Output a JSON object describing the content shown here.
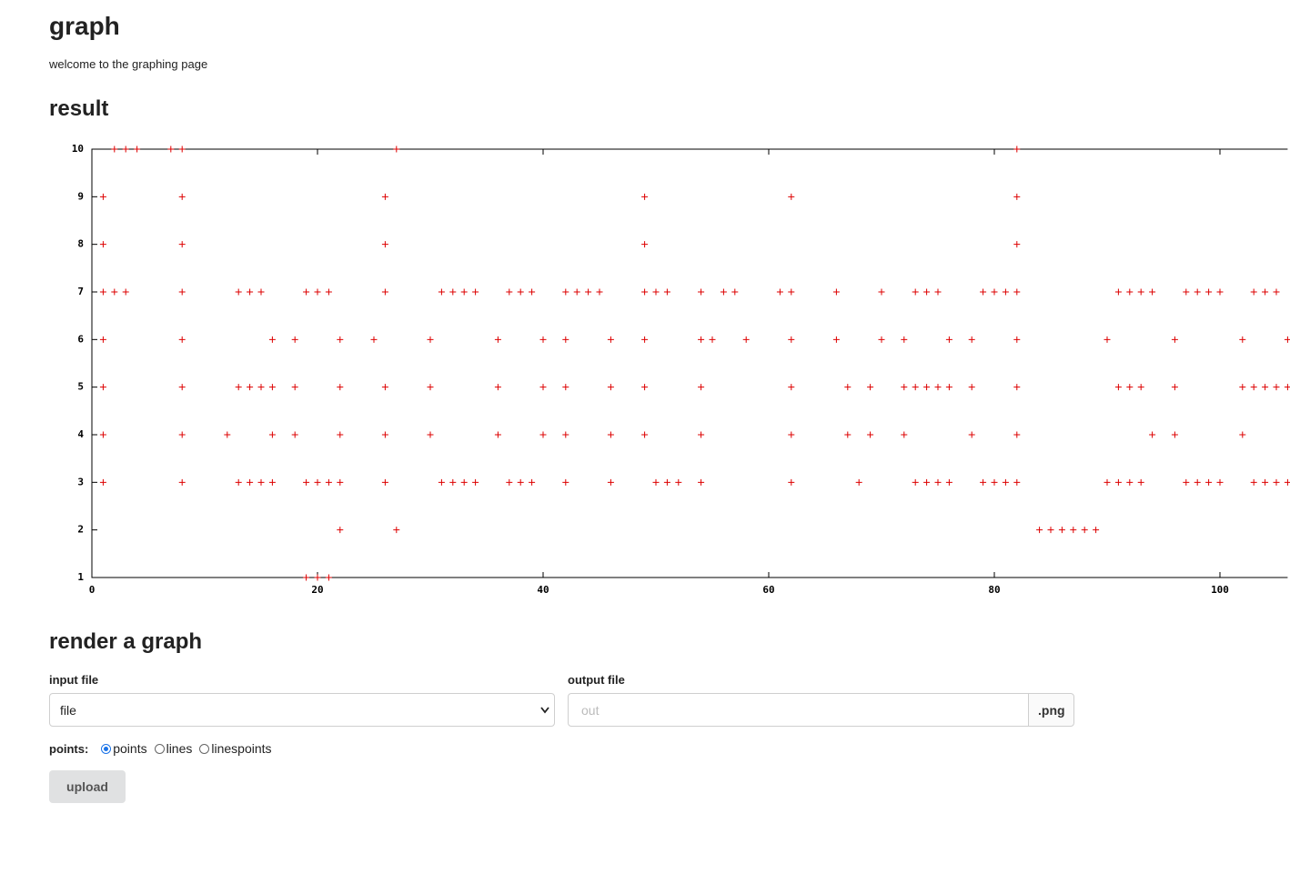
{
  "header": {
    "title": "graph",
    "subtitle": "welcome to the graphing page"
  },
  "result_heading": "result",
  "chart_data": {
    "type": "scatter",
    "color": "#dd0000",
    "marker": "plus",
    "xlim": [
      0,
      106
    ],
    "ylim": [
      1,
      10
    ],
    "xticks": [
      0,
      20,
      40,
      60,
      80,
      100
    ],
    "yticks": [
      1,
      2,
      3,
      4,
      5,
      6,
      7,
      8,
      9,
      10
    ],
    "x": [
      2,
      3,
      4,
      7,
      8,
      27,
      82,
      1,
      8,
      26,
      49,
      62,
      82,
      1,
      8,
      26,
      49,
      82,
      1,
      2,
      3,
      8,
      13,
      14,
      15,
      19,
      20,
      21,
      26,
      31,
      32,
      33,
      34,
      37,
      38,
      39,
      42,
      43,
      44,
      45,
      49,
      50,
      51,
      54,
      56,
      57,
      61,
      62,
      66,
      70,
      73,
      74,
      75,
      79,
      80,
      81,
      82,
      91,
      92,
      93,
      94,
      97,
      98,
      99,
      100,
      103,
      104,
      105,
      1,
      8,
      16,
      18,
      22,
      25,
      30,
      36,
      40,
      42,
      46,
      49,
      54,
      55,
      58,
      62,
      66,
      70,
      72,
      76,
      78,
      82,
      90,
      96,
      102,
      106,
      1,
      8,
      13,
      14,
      15,
      16,
      18,
      22,
      26,
      30,
      36,
      40,
      42,
      46,
      49,
      54,
      62,
      67,
      69,
      72,
      73,
      74,
      75,
      76,
      78,
      82,
      91,
      92,
      93,
      96,
      102,
      103,
      104,
      105,
      106,
      1,
      8,
      12,
      16,
      18,
      22,
      26,
      30,
      36,
      40,
      42,
      46,
      49,
      54,
      62,
      67,
      69,
      72,
      78,
      82,
      94,
      96,
      102,
      1,
      8,
      13,
      14,
      15,
      16,
      19,
      20,
      21,
      22,
      26,
      31,
      32,
      33,
      34,
      37,
      38,
      39,
      42,
      46,
      50,
      51,
      52,
      54,
      62,
      68,
      73,
      74,
      75,
      76,
      79,
      80,
      81,
      82,
      90,
      91,
      92,
      93,
      97,
      98,
      99,
      100,
      103,
      104,
      105,
      106,
      22,
      27,
      84,
      85,
      86,
      87,
      88,
      89,
      19,
      20,
      21
    ],
    "values": [
      10,
      10,
      10,
      10,
      10,
      10,
      10,
      9,
      9,
      9,
      9,
      9,
      9,
      8,
      8,
      8,
      8,
      8,
      7,
      7,
      7,
      7,
      7,
      7,
      7,
      7,
      7,
      7,
      7,
      7,
      7,
      7,
      7,
      7,
      7,
      7,
      7,
      7,
      7,
      7,
      7,
      7,
      7,
      7,
      7,
      7,
      7,
      7,
      7,
      7,
      7,
      7,
      7,
      7,
      7,
      7,
      7,
      7,
      7,
      7,
      7,
      7,
      7,
      7,
      7,
      7,
      7,
      7,
      6,
      6,
      6,
      6,
      6,
      6,
      6,
      6,
      6,
      6,
      6,
      6,
      6,
      6,
      6,
      6,
      6,
      6,
      6,
      6,
      6,
      6,
      6,
      6,
      6,
      6,
      5,
      5,
      5,
      5,
      5,
      5,
      5,
      5,
      5,
      5,
      5,
      5,
      5,
      5,
      5,
      5,
      5,
      5,
      5,
      5,
      5,
      5,
      5,
      5,
      5,
      5,
      5,
      5,
      5,
      5,
      5,
      5,
      5,
      5,
      5,
      4,
      4,
      4,
      4,
      4,
      4,
      4,
      4,
      4,
      4,
      4,
      4,
      4,
      4,
      4,
      4,
      4,
      4,
      4,
      4,
      4,
      4,
      4,
      3,
      3,
      3,
      3,
      3,
      3,
      3,
      3,
      3,
      3,
      3,
      3,
      3,
      3,
      3,
      3,
      3,
      3,
      3,
      3,
      3,
      3,
      3,
      3,
      3,
      3,
      3,
      3,
      3,
      3,
      3,
      3,
      3,
      3,
      3,
      3,
      3,
      3,
      3,
      3,
      3,
      3,
      3,
      3,
      3,
      3,
      2,
      2,
      2,
      2,
      2,
      2,
      2,
      2,
      1,
      1,
      1
    ]
  },
  "form": {
    "heading": "render a graph",
    "input_label": "input file",
    "input_value": "file",
    "output_label": "output file",
    "output_placeholder": "out",
    "output_suffix": ".png",
    "points_label": "points:",
    "options": [
      "points",
      "lines",
      "linespoints"
    ],
    "selected": 0,
    "button": "upload"
  }
}
